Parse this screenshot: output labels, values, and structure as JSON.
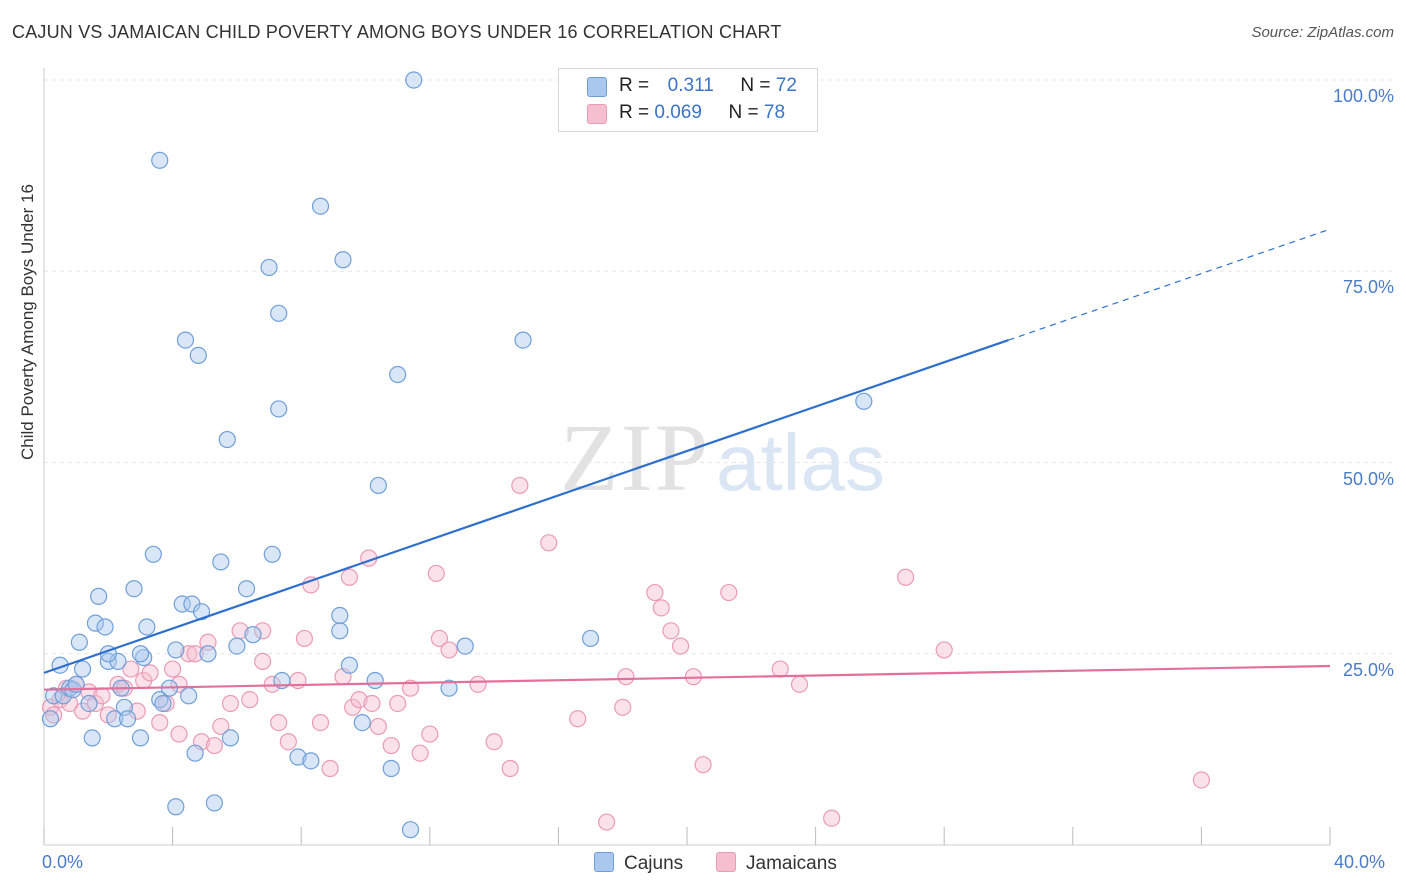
{
  "title": "CAJUN VS JAMAICAN CHILD POVERTY AMONG BOYS UNDER 16 CORRELATION CHART",
  "source": "Source: ZipAtlas.com",
  "watermark_a": "ZIP",
  "watermark_b": "atlas",
  "legend": {
    "cajun": {
      "r_label": "R =",
      "r_value": "0.311",
      "n_label": "N =",
      "n_value": "72"
    },
    "jamaican": {
      "r_label": "R =",
      "r_value": "0.069",
      "n_label": "N =",
      "n_value": "78"
    }
  },
  "bottom_legend": {
    "cajun": "Cajuns",
    "jamaican": "Jamaicans"
  },
  "colors": {
    "cajun_fill": "#aac8ee",
    "cajun_stroke": "#6f9fd8",
    "cajun_line": "#2e6fce",
    "jamaican_fill": "#f6bfd0",
    "jamaican_stroke": "#eb9ab5",
    "jamaican_line": "#e2709a",
    "grid": "#e6e6e6",
    "axis_text": "#4a7cc9"
  },
  "chart_data": {
    "type": "scatter",
    "title": "CAJUN VS JAMAICAN CHILD POVERTY AMONG BOYS UNDER 16 CORRELATION CHART",
    "xlabel": "",
    "ylabel": "Child Poverty Among Boys Under 16",
    "xlim": [
      0,
      40
    ],
    "ylim": [
      0,
      100
    ],
    "x_tick_labels": [
      "0.0%",
      "40.0%"
    ],
    "y_ticks": [
      25,
      50,
      75,
      100
    ],
    "y_tick_labels": [
      "25.0%",
      "50.0%",
      "75.0%",
      "100.0%"
    ],
    "grid": true,
    "series": [
      {
        "name": "Cajuns",
        "points": [
          [
            0.3,
            19.5
          ],
          [
            0.5,
            23.5
          ],
          [
            0.6,
            19.5
          ],
          [
            0.8,
            20.5
          ],
          [
            0.9,
            20.3
          ],
          [
            1.1,
            26.5
          ],
          [
            1.2,
            23
          ],
          [
            1.4,
            18.5
          ],
          [
            1.5,
            14
          ],
          [
            1.6,
            29
          ],
          [
            1.7,
            32.5
          ],
          [
            1.9,
            28.5
          ],
          [
            2.0,
            24
          ],
          [
            2.2,
            16.5
          ],
          [
            2.3,
            24
          ],
          [
            2.4,
            20.5
          ],
          [
            2.5,
            18
          ],
          [
            2.6,
            16.5
          ],
          [
            2.8,
            33.5
          ],
          [
            3.0,
            14
          ],
          [
            3.1,
            24.5
          ],
          [
            3.2,
            28.5
          ],
          [
            3.4,
            38
          ],
          [
            3.6,
            19
          ],
          [
            3.7,
            18.5
          ],
          [
            3.9,
            20.5
          ],
          [
            4.1,
            25.5
          ],
          [
            4.3,
            31.5
          ],
          [
            4.6,
            31.5
          ],
          [
            4.7,
            12
          ],
          [
            4.9,
            30.5
          ],
          [
            5.1,
            25
          ],
          [
            5.3,
            5.5
          ],
          [
            5.5,
            37
          ],
          [
            5.8,
            14
          ],
          [
            6.0,
            26
          ],
          [
            6.3,
            33.5
          ],
          [
            6.5,
            27.5
          ],
          [
            7.1,
            38
          ],
          [
            7.3,
            57
          ],
          [
            7.4,
            21.5
          ],
          [
            7.9,
            11.5
          ],
          [
            8.3,
            11
          ],
          [
            9.2,
            28
          ],
          [
            9.5,
            23.5
          ],
          [
            9.9,
            16
          ],
          [
            10.3,
            21.5
          ],
          [
            10.8,
            10
          ],
          [
            11.4,
            2
          ],
          [
            12.6,
            20.5
          ],
          [
            13.1,
            26
          ],
          [
            14.9,
            66
          ],
          [
            17.0,
            27
          ],
          [
            25.5,
            58
          ],
          [
            4.4,
            66
          ],
          [
            4.8,
            64
          ],
          [
            5.7,
            53
          ],
          [
            7.3,
            69.5
          ],
          [
            7.0,
            75.5
          ],
          [
            8.6,
            83.5
          ],
          [
            9.3,
            76.5
          ],
          [
            11.0,
            61.5
          ],
          [
            11.5,
            100
          ],
          [
            3.6,
            89.5
          ],
          [
            10.4,
            47
          ],
          [
            9.2,
            30
          ],
          [
            0.2,
            16.5
          ],
          [
            1.0,
            21
          ],
          [
            2.0,
            25
          ],
          [
            4.1,
            5
          ],
          [
            4.5,
            19.5
          ],
          [
            3.0,
            25
          ]
        ]
      },
      {
        "name": "Jamaicans",
        "points": [
          [
            0.2,
            18
          ],
          [
            0.3,
            17
          ],
          [
            0.5,
            19
          ],
          [
            0.7,
            20.5
          ],
          [
            0.8,
            18.5
          ],
          [
            1.0,
            21
          ],
          [
            1.2,
            17.5
          ],
          [
            1.4,
            20
          ],
          [
            1.6,
            18.5
          ],
          [
            1.8,
            19.5
          ],
          [
            2.0,
            17
          ],
          [
            2.3,
            21
          ],
          [
            2.5,
            20.5
          ],
          [
            2.7,
            23
          ],
          [
            2.9,
            17.5
          ],
          [
            3.1,
            21.5
          ],
          [
            3.3,
            22.5
          ],
          [
            3.6,
            16
          ],
          [
            3.8,
            18.5
          ],
          [
            4.0,
            23
          ],
          [
            4.2,
            14.5
          ],
          [
            4.5,
            25
          ],
          [
            4.7,
            25
          ],
          [
            4.9,
            13.5
          ],
          [
            5.1,
            26.5
          ],
          [
            5.3,
            13
          ],
          [
            5.5,
            15.5
          ],
          [
            5.8,
            18.5
          ],
          [
            6.1,
            28
          ],
          [
            6.4,
            19
          ],
          [
            6.8,
            24
          ],
          [
            7.1,
            21
          ],
          [
            7.3,
            16
          ],
          [
            7.6,
            13.5
          ],
          [
            7.9,
            21.5
          ],
          [
            8.1,
            27
          ],
          [
            8.3,
            34
          ],
          [
            8.6,
            16
          ],
          [
            8.9,
            10
          ],
          [
            9.3,
            22
          ],
          [
            9.6,
            18
          ],
          [
            9.8,
            19
          ],
          [
            10.1,
            37.5
          ],
          [
            10.4,
            15.5
          ],
          [
            10.8,
            13
          ],
          [
            11.0,
            18.5
          ],
          [
            11.4,
            20.5
          ],
          [
            11.7,
            12
          ],
          [
            12.0,
            14.5
          ],
          [
            12.3,
            27
          ],
          [
            12.6,
            25.5
          ],
          [
            13.5,
            21
          ],
          [
            14.0,
            13.5
          ],
          [
            14.5,
            10
          ],
          [
            14.8,
            47
          ],
          [
            15.7,
            39.5
          ],
          [
            16.6,
            16.5
          ],
          [
            17.5,
            3
          ],
          [
            18.0,
            18
          ],
          [
            18.1,
            22
          ],
          [
            19.0,
            33
          ],
          [
            19.2,
            31
          ],
          [
            19.5,
            28
          ],
          [
            19.8,
            26
          ],
          [
            20.2,
            22
          ],
          [
            20.5,
            10.5
          ],
          [
            21.3,
            33
          ],
          [
            22.9,
            23
          ],
          [
            23.5,
            21
          ],
          [
            24.5,
            3.5
          ],
          [
            26.8,
            35
          ],
          [
            28.0,
            25.5
          ],
          [
            36.0,
            8.5
          ],
          [
            9.5,
            35
          ],
          [
            10.2,
            18.5
          ],
          [
            12.2,
            35.5
          ],
          [
            6.8,
            28
          ],
          [
            4.2,
            21
          ]
        ]
      }
    ],
    "trendlines": [
      {
        "series": "Cajuns",
        "x0": 0,
        "y0": 22.5,
        "x1": 30.0,
        "y1": 66,
        "dashed_to_x": 40,
        "dashed_to_y": 80.5
      },
      {
        "series": "Jamaicans",
        "x0": 0,
        "y0": 20.3,
        "x1": 40,
        "y1": 23.4
      }
    ]
  }
}
